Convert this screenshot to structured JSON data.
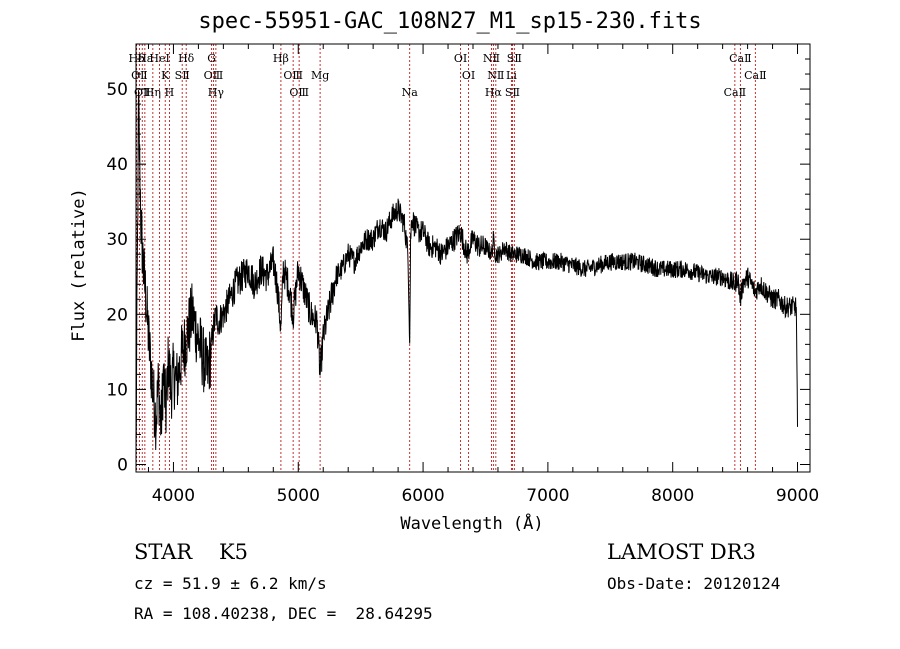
{
  "chart_data": {
    "type": "line",
    "title": "spec-55951-GAC_108N27_M1_sp15-230.fits",
    "xlabel": "Wavelength (Å)",
    "ylabel": "Flux (relative)",
    "xlim": [
      3700,
      9100
    ],
    "ylim": [
      -1,
      56
    ],
    "xticks": [
      4000,
      5000,
      6000,
      7000,
      8000,
      9000
    ],
    "yticks": [
      0,
      10,
      20,
      30,
      40,
      50
    ],
    "grid": false,
    "series": [
      {
        "name": "spectrum",
        "x": [
          3700,
          3720,
          3740,
          3760,
          3780,
          3800,
          3820,
          3840,
          3860,
          3880,
          3900,
          3920,
          3940,
          3960,
          3980,
          4000,
          4030,
          4060,
          4090,
          4120,
          4150,
          4180,
          4210,
          4240,
          4270,
          4300,
          4320,
          4340,
          4360,
          4400,
          4450,
          4500,
          4550,
          4600,
          4650,
          4700,
          4750,
          4800,
          4830,
          4861,
          4880,
          4920,
          4960,
          5000,
          5050,
          5100,
          5150,
          5175,
          5200,
          5250,
          5300,
          5350,
          5400,
          5450,
          5500,
          5550,
          5600,
          5650,
          5700,
          5750,
          5800,
          5850,
          5880,
          5893,
          5900,
          5910,
          5930,
          5960,
          6000,
          6050,
          6100,
          6150,
          6200,
          6250,
          6300,
          6350,
          6400,
          6450,
          6500,
          6550,
          6563,
          6580,
          6620,
          6650,
          6700,
          6750,
          6800,
          6900,
          7000,
          7100,
          7200,
          7300,
          7400,
          7500,
          7600,
          7700,
          7800,
          7900,
          8000,
          8100,
          8200,
          8300,
          8400,
          8498,
          8520,
          8542,
          8560,
          8600,
          8662,
          8700,
          8750,
          8800,
          8850,
          8900,
          8950,
          8990,
          9000
        ],
        "y": [
          0.5,
          48,
          32,
          26,
          22,
          17,
          13,
          9,
          6,
          11,
          5,
          12,
          7,
          14,
          10,
          12,
          11,
          14,
          16,
          18,
          20,
          18,
          16,
          14,
          12,
          15,
          18,
          20,
          19,
          20,
          22,
          24,
          25,
          26,
          24,
          26,
          25,
          27,
          24,
          18,
          26,
          24,
          20,
          26,
          23,
          20,
          19,
          12,
          17,
          21,
          25,
          26,
          28,
          27,
          29,
          30,
          30,
          32,
          31,
          33,
          34,
          32,
          28,
          16,
          30,
          33,
          32,
          31,
          31,
          29,
          29,
          28,
          29,
          30,
          31,
          28,
          30,
          29,
          29,
          28,
          30,
          28,
          28,
          29,
          28,
          28,
          28,
          27,
          27,
          27,
          26.5,
          26,
          26.5,
          27,
          27,
          27,
          26.5,
          26,
          26,
          26,
          25.5,
          25,
          25,
          24,
          25,
          22,
          24,
          25,
          23,
          24,
          23,
          22,
          22,
          21,
          21,
          21,
          5
        ]
      }
    ],
    "lines_top": [
      {
        "label": "Hδ",
        "x": 3705
      },
      {
        "label": "OⅡ",
        "x": 3727
      },
      {
        "label": "OⅡ",
        "x": 3750
      },
      {
        "label": "Hε",
        "x": 3771
      },
      {
        "label": "K",
        "x": 3934
      },
      {
        "label": "Hη",
        "x": 3835
      },
      {
        "label": "HeⅠ",
        "x": 3889
      },
      {
        "label": "SⅡ",
        "x": 4070
      },
      {
        "label": "H",
        "x": 3968
      },
      {
        "label": "Hδ",
        "x": 4102
      },
      {
        "label": "OⅢ",
        "x": 4320
      },
      {
        "label": "Hγ",
        "x": 4340
      },
      {
        "label": "G",
        "x": 4306
      },
      {
        "label": "OⅢ",
        "x": 4959
      },
      {
        "label": "OⅢ",
        "x": 5007
      },
      {
        "label": "Hβ",
        "x": 4861
      },
      {
        "label": "Mg",
        "x": 5175
      },
      {
        "label": "Na",
        "x": 5893
      },
      {
        "label": "OⅠ",
        "x": 6300
      },
      {
        "label": "OⅠ",
        "x": 6364
      },
      {
        "label": "Hα",
        "x": 6563
      },
      {
        "label": "NⅡ",
        "x": 6548
      },
      {
        "label": "NⅡ",
        "x": 6583
      },
      {
        "label": "SⅡ",
        "x": 6716
      },
      {
        "label": "SⅡ",
        "x": 6731
      },
      {
        "label": "Li",
        "x": 6708
      },
      {
        "label": "CaⅡ",
        "x": 8498
      },
      {
        "label": "CaⅡ",
        "x": 8542
      },
      {
        "label": "CaⅡ",
        "x": 8662
      }
    ],
    "line_color": "#000000",
    "marker_color": "#b30000"
  },
  "info": {
    "class_label": "STAR",
    "subclass": "K5",
    "survey": "LAMOST DR3",
    "cz": "cz = 51.9 ± 6.2 km/s",
    "obs_date": "Obs-Date: 20120124",
    "coords": "RA = 108.40238, DEC =  28.64295"
  }
}
